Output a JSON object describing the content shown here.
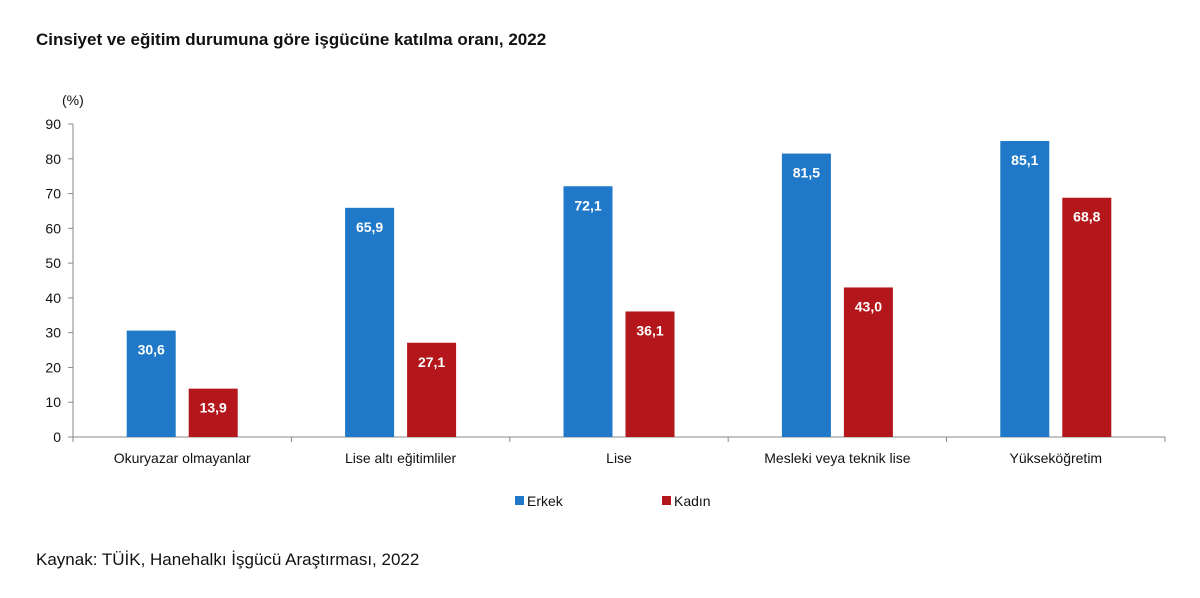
{
  "chart_data": {
    "type": "bar",
    "title": "Cinsiyet ve eğitim durumuna göre işgücüne katılma oranı, 2022",
    "ylabel": "(%)",
    "xlabel": "",
    "ylim": [
      0,
      90
    ],
    "yticks": [
      "0",
      "10",
      "20",
      "30",
      "40",
      "50",
      "60",
      "70",
      "80",
      "90"
    ],
    "categories": [
      "Okuryazar olmayanlar",
      "Lise altı eğitimliler",
      "Lise",
      "Mesleki veya teknik lise",
      "Yükseköğretim"
    ],
    "series": [
      {
        "name": "Erkek",
        "color": "#1f78c8",
        "values": [
          30.6,
          65.9,
          72.1,
          81.5,
          85.1
        ],
        "labels": [
          "30,6",
          "65,9",
          "72,1",
          "81,5",
          "85,1"
        ]
      },
      {
        "name": "Kadın",
        "color": "#b3161b",
        "values": [
          13.9,
          27.1,
          36.1,
          43.0,
          68.8
        ],
        "labels": [
          "13,9",
          "27,1",
          "36,1",
          "43,0",
          "68,8"
        ]
      }
    ],
    "grid": false,
    "legend_position": "bottom"
  },
  "source": "Kaynak: TÜİK, Hanehalkı İşgücü Araştırması, 2022"
}
